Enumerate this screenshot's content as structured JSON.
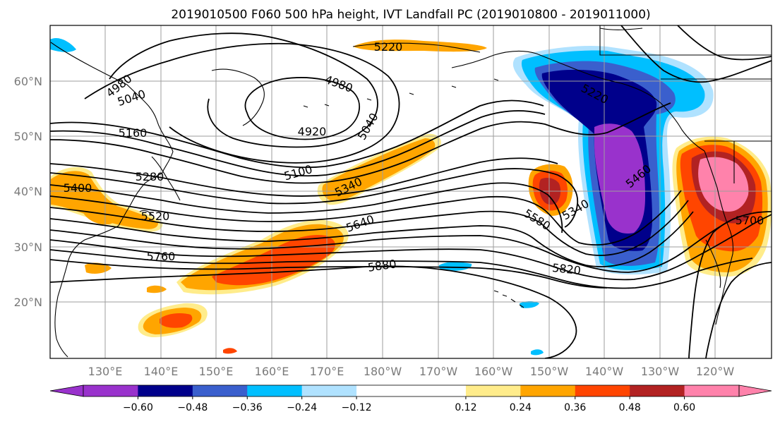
{
  "title": "2019010500 F060 500 hPa height, IVT Landfall PC (2019010800 - 2019011000)",
  "lat_labels": [
    "60°N",
    "50°N",
    "40°N",
    "30°N",
    "20°N"
  ],
  "lon_labels": [
    "130°E",
    "140°E",
    "150°E",
    "160°E",
    "170°E",
    "180°W",
    "170°W",
    "160°W",
    "150°W",
    "140°W",
    "130°W",
    "120°W"
  ],
  "colorbar": {
    "colors": [
      "#9932cc",
      "#00008b",
      "#3a5fcd",
      "#00bfff",
      "#b0e2ff",
      "#ffffff",
      "#ffffff",
      "#ffec8b",
      "#ffa500",
      "#ff4500",
      "#b22222",
      "#ff82ab"
    ],
    "extend_min_color": "#9932cc",
    "extend_max_color": "#ff82ab",
    "tick_labels": [
      "−0.60",
      "−0.48",
      "−0.36",
      "−0.24",
      "−0.12",
      "0.12",
      "0.24",
      "0.36",
      "0.48",
      "0.60"
    ]
  },
  "contour_labels": [
    "4980",
    "5040",
    "5160",
    "5280",
    "5400",
    "5520",
    "5760",
    "4920",
    "4980",
    "5040",
    "5100",
    "5340",
    "5640",
    "5880",
    "5220",
    "5220",
    "5580",
    "5340",
    "5460",
    "5820",
    "5700"
  ]
}
